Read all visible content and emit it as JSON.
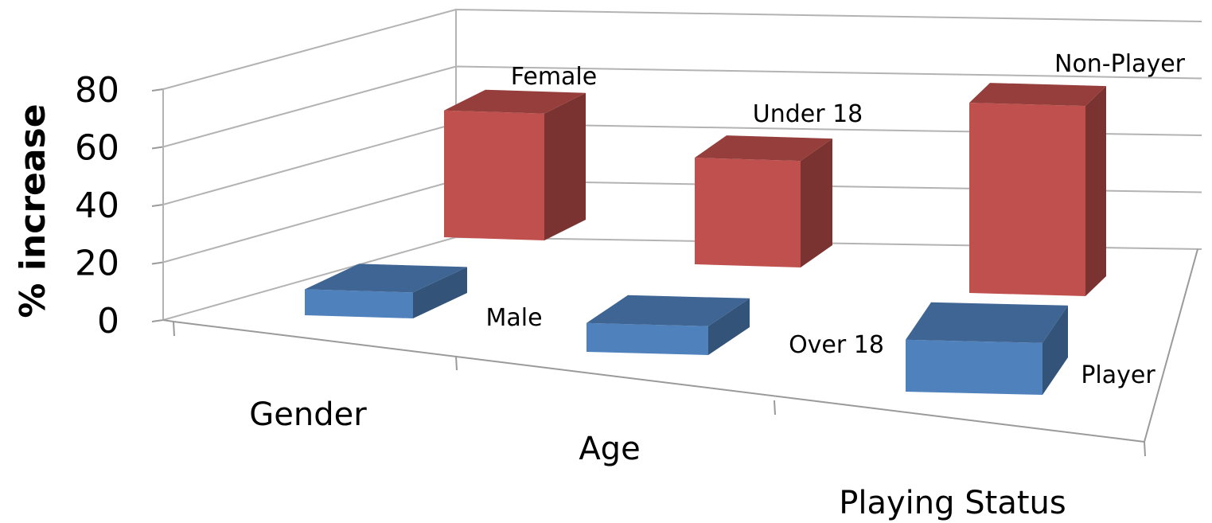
{
  "chart_data": {
    "type": "bar",
    "ylabel": "% increase",
    "ylim": [
      0,
      80
    ],
    "yticks": [
      "0",
      "20",
      "40",
      "60",
      "80"
    ],
    "grid": true,
    "categories": [
      "Gender",
      "Age",
      "Playing Status"
    ],
    "series": [
      {
        "name": "front",
        "labels": [
          "Male",
          "Over 18",
          "Player"
        ],
        "values": [
          9,
          10,
          18
        ],
        "color": "#4f81bd"
      },
      {
        "name": "back",
        "labels": [
          "Female",
          "Under 18",
          "Non-Player"
        ],
        "values": [
          44,
          37,
          66
        ],
        "color": "#c0504d"
      }
    ]
  }
}
